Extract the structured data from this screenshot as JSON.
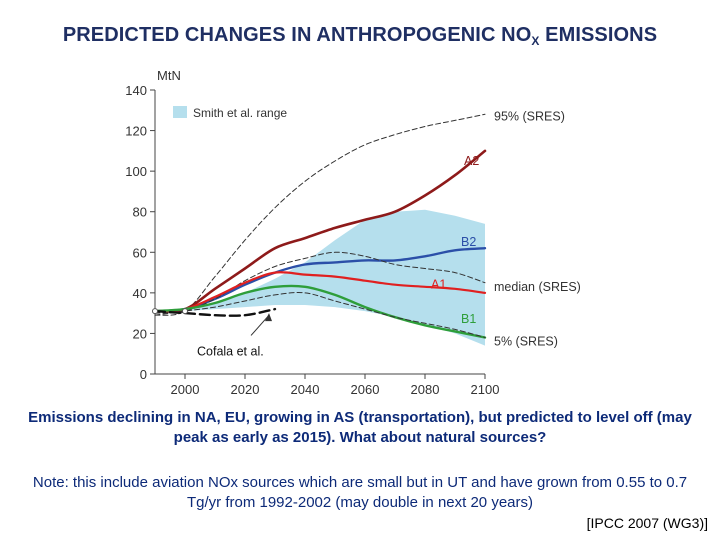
{
  "slide": {
    "title_main": "PREDICTED CHANGES IN ANTHROPOGENIC NO",
    "title_sub": "X",
    "title_end": " EMISSIONS",
    "caption_bold": "Emissions declining in NA, EU, growing in AS (transportation), but predicted to level off (may peak as early as 2015). What about natural sources?",
    "caption_note": "Note: this include aviation NOx sources which are small but in UT and have grown from 0.55 to 0.7 Tg/yr from 1992-2002 (may double in next 20 years)",
    "citation": "[IPCC 2007 (WG3)]"
  },
  "chart_data": {
    "type": "line",
    "title": "",
    "xlabel": "",
    "ylabel": "MtN",
    "xlim": [
      1990,
      2100
    ],
    "ylim": [
      0,
      140
    ],
    "x_ticks": [
      "2000",
      "2020",
      "2040",
      "2060",
      "2080",
      "2100"
    ],
    "y_ticks": [
      "0",
      "20",
      "40",
      "60",
      "80",
      "100",
      "120",
      "140"
    ],
    "grid": false,
    "legend": {
      "label": "Smith et al. range",
      "position": "top-left"
    },
    "band": {
      "name": "Smith et al. range",
      "color": "#b5dfed",
      "x": [
        2000,
        2010,
        2020,
        2030,
        2040,
        2050,
        2060,
        2070,
        2080,
        2090,
        2100
      ],
      "upper": [
        31,
        35,
        40,
        47,
        55,
        66,
        76,
        80,
        81,
        78,
        74
      ],
      "lower": [
        31,
        32,
        33,
        34,
        34,
        33,
        31,
        28,
        24,
        20,
        14
      ]
    },
    "series": [
      {
        "name": "95% (SRES)",
        "color": "#333333",
        "style": "dashed",
        "label_x": 2103,
        "label_y": 127,
        "x": [
          1990,
          2000,
          2010,
          2020,
          2030,
          2040,
          2050,
          2060,
          2070,
          2080,
          2090,
          2100
        ],
        "y": [
          29,
          31,
          48,
          66,
          82,
          95,
          105,
          113,
          118,
          122,
          125,
          128
        ]
      },
      {
        "name": "A2",
        "color": "#8e1a1a",
        "style": "solid",
        "width": 2.6,
        "label_x": 2093,
        "label_y": 105,
        "x": [
          1990,
          2000,
          2010,
          2020,
          2030,
          2040,
          2050,
          2060,
          2070,
          2080,
          2090,
          2100
        ],
        "y": [
          31,
          32,
          42,
          52,
          62,
          67,
          72,
          76,
          80,
          88,
          98,
          110
        ]
      },
      {
        "name": "B2",
        "color": "#2b4fa8",
        "style": "solid",
        "width": 2.4,
        "label_x": 2092,
        "label_y": 65,
        "x": [
          1990,
          2000,
          2010,
          2020,
          2030,
          2040,
          2050,
          2060,
          2070,
          2080,
          2090,
          2100
        ],
        "y": [
          31,
          32,
          37,
          44,
          50,
          54,
          55,
          56,
          56,
          58,
          61,
          62
        ]
      },
      {
        "name": "median (SRES)",
        "color": "#333333",
        "style": "dashed",
        "label_x": 2103,
        "label_y": 43,
        "x": [
          1990,
          2000,
          2010,
          2020,
          2030,
          2040,
          2050,
          2060,
          2070,
          2080,
          2090,
          2100
        ],
        "y": [
          30,
          31,
          37,
          46,
          53,
          57,
          60,
          58,
          54,
          52,
          50,
          45
        ]
      },
      {
        "name": "A1",
        "color": "#e02020",
        "style": "solid",
        "width": 2.2,
        "label_x": 2082,
        "label_y": 44,
        "x": [
          1990,
          2000,
          2010,
          2020,
          2030,
          2040,
          2050,
          2060,
          2070,
          2080,
          2090,
          2100
        ],
        "y": [
          31,
          32,
          38,
          45,
          50,
          49,
          48,
          46,
          44,
          43,
          42,
          40
        ]
      },
      {
        "name": "B1",
        "color": "#2e9e3a",
        "style": "solid",
        "width": 2.4,
        "label_x": 2092,
        "label_y": 27,
        "x": [
          1990,
          2000,
          2010,
          2020,
          2030,
          2040,
          2050,
          2060,
          2070,
          2080,
          2090,
          2100
        ],
        "y": [
          31,
          32,
          35,
          40,
          43,
          43,
          39,
          33,
          28,
          24,
          21,
          18
        ]
      },
      {
        "name": "5% (SRES)",
        "color": "#333333",
        "style": "dashed",
        "label_x": 2103,
        "label_y": 16,
        "x": [
          1990,
          2000,
          2010,
          2020,
          2030,
          2040,
          2050,
          2060,
          2070,
          2080,
          2090,
          2100
        ],
        "y": [
          29,
          31,
          33,
          36,
          39,
          40,
          36,
          32,
          28,
          25,
          22,
          18
        ]
      },
      {
        "name": "Cofala et al.",
        "color": "#111111",
        "style": "longdash",
        "width": 2.4,
        "label_x": 2004,
        "label_y": 11,
        "x": [
          1990,
          2000,
          2010,
          2020,
          2030
        ],
        "y": [
          31,
          30,
          29,
          29,
          32
        ]
      }
    ],
    "cofala_pointer": {
      "from": [
        2022,
        19
      ],
      "to": [
        2028,
        29
      ]
    }
  }
}
